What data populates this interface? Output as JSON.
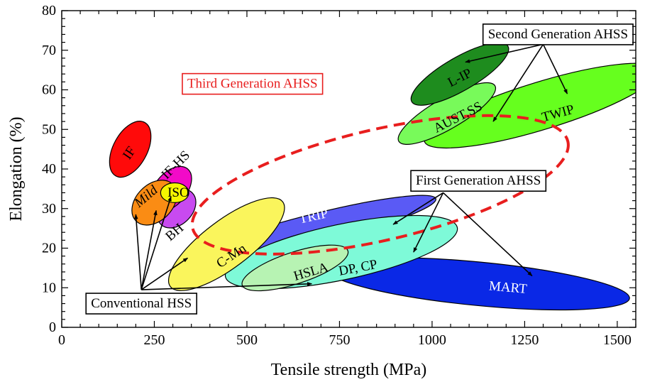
{
  "chart_data": {
    "type": "scatter",
    "title": "",
    "xlabel": "Tensile strength (MPa)",
    "ylabel": "Elongation (%)",
    "xlim": [
      0,
      1550
    ],
    "ylim": [
      0,
      80
    ],
    "grid": false,
    "x_ticks": [
      0,
      250,
      500,
      750,
      1000,
      1250,
      1500
    ],
    "y_ticks": [
      0,
      10,
      20,
      30,
      40,
      50,
      60,
      70,
      80
    ],
    "regions": [
      {
        "label": "MART",
        "cx": 1125,
        "cy": 11,
        "rx": 410,
        "ry": 5.5,
        "angle": 5.5,
        "fill": "#0a28e6",
        "text_color": "#ffffff",
        "label_x": 1205,
        "label_y": 10,
        "italic": false
      },
      {
        "label": "TRIP",
        "cx": 690,
        "cy": 25,
        "rx": 330,
        "ry": 3.8,
        "angle": -14,
        "fill": "#5a5af5",
        "text_color": "#ffffff",
        "label_x": 680,
        "label_y": 28,
        "italic": false
      },
      {
        "label": "DP, CP",
        "cx": 755,
        "cy": 19,
        "rx": 320,
        "ry": 7,
        "angle": -12,
        "fill": "#7efad8",
        "text_color": "#000000",
        "label_x": 800,
        "label_y": 15,
        "italic": false
      },
      {
        "label": "HSLA",
        "cx": 630,
        "cy": 15,
        "rx": 150,
        "ry": 4,
        "angle": -18,
        "fill": "#b7f3b3",
        "text_color": "#000000",
        "label_x": 673,
        "label_y": 14,
        "italic": false
      },
      {
        "label": "C-Mn",
        "cx": 445,
        "cy": 21,
        "rx": 190,
        "ry": 6,
        "angle": -37,
        "fill": "#faf55c",
        "text_color": "#000000",
        "label_x": 458,
        "label_y": 18,
        "italic": false
      },
      {
        "label": "BH",
        "cx": 310,
        "cy": 30,
        "rx": 60,
        "ry": 4,
        "angle": -45,
        "fill": "#c84af0",
        "text_color": "#000000",
        "label_x": 305,
        "label_y": 24,
        "italic": false
      },
      {
        "label": "IF-HS",
        "cx": 295,
        "cy": 35,
        "rx": 70,
        "ry": 4,
        "angle": -50,
        "fill": "#f20ac8",
        "text_color": "#000000",
        "label_x": 308,
        "label_y": 41,
        "italic": false
      },
      {
        "label": "Mild",
        "cx": 250,
        "cy": 31.5,
        "rx": 70,
        "ry": 4.6,
        "angle": -45,
        "fill": "#fa8c14",
        "text_color": "#000000",
        "label_x": 228,
        "label_y": 33,
        "italic": true
      },
      {
        "label": "ISO",
        "cx": 305,
        "cy": 34,
        "rx": 38,
        "ry": 2.5,
        "angle": 0,
        "fill": "#f5f500",
        "text_color": "#000000",
        "label_x": 315,
        "label_y": 34,
        "italic": false
      },
      {
        "label": "IF",
        "cx": 185,
        "cy": 45,
        "rx": 82,
        "ry": 4.3,
        "angle": -62,
        "fill": "#ff0a0a",
        "text_color": "#000000",
        "label_x": 183,
        "label_y": 44,
        "italic": false
      },
      {
        "label": "TWIP",
        "cx": 1295,
        "cy": 56,
        "rx": 330,
        "ry": 6,
        "angle": -17,
        "fill": "#66ff1e",
        "text_color": "#000000",
        "label_x": 1340,
        "label_y": 54,
        "italic": false
      },
      {
        "label": "AUST.SS",
        "cx": 1040,
        "cy": 54,
        "rx": 150,
        "ry": 3.9,
        "angle": -30,
        "fill": "#78fa5a",
        "text_color": "#000000",
        "label_x": 1070,
        "label_y": 53,
        "italic": false
      },
      {
        "label": "L-IP",
        "cx": 1075,
        "cy": 64,
        "rx": 150,
        "ry": 4.2,
        "angle": -30,
        "fill": "#1e8c1e",
        "text_color": "#000000",
        "label_x": 1075,
        "label_y": 63,
        "italic": false
      }
    ],
    "third_gen_region": {
      "cx": 860,
      "cy": 36,
      "rx": 520,
      "ry": 14,
      "angle": -13,
      "color": "#e81e1e"
    },
    "annotations": [
      {
        "label": "Second Generation AHSS",
        "box_x": 1340,
        "box_y": 74,
        "text_color": "#000000",
        "border": "#000000",
        "arrows_from": [
          1300,
          71.5
        ],
        "arrows_to": [
          [
            1090,
            67
          ],
          [
            1165,
            52
          ],
          [
            1365,
            59
          ]
        ]
      },
      {
        "label": "Third Generation AHSS",
        "box_x": 515,
        "box_y": 61.5,
        "text_color": "#e81e1e",
        "border": "#e81e1e",
        "arrows_from": null,
        "arrows_to": []
      },
      {
        "label": "First Generation AHSS",
        "box_x": 1125,
        "box_y": 37,
        "text_color": "#000000",
        "border": "#000000",
        "arrows_from": [
          1030,
          34
        ],
        "arrows_to": [
          [
            895,
            26
          ],
          [
            950,
            19
          ],
          [
            1270,
            13
          ]
        ]
      },
      {
        "label": "Conventional HSS",
        "box_x": 215,
        "box_y": 6,
        "text_color": "#000000",
        "border": "#000000",
        "arrows_from": [
          215,
          9.5
        ],
        "arrows_to": [
          [
            200,
            28.5
          ],
          [
            255,
            29.5
          ],
          [
            295,
            33
          ],
          [
            340,
            17.5
          ],
          [
            675,
            11
          ]
        ]
      }
    ]
  }
}
